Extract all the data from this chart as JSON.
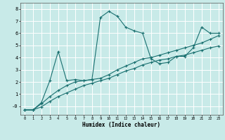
{
  "xlabel": "Humidex (Indice chaleur)",
  "bg_color": "#c8eae8",
  "grid_color": "#ffffff",
  "line_color": "#1a7070",
  "xlim": [
    -0.5,
    23.5
  ],
  "ylim": [
    -0.7,
    8.5
  ],
  "xticks": [
    0,
    1,
    2,
    3,
    4,
    5,
    6,
    7,
    8,
    9,
    10,
    11,
    12,
    13,
    14,
    15,
    16,
    17,
    18,
    19,
    20,
    21,
    22,
    23
  ],
  "yticks": [
    0,
    1,
    2,
    3,
    4,
    5,
    6,
    7,
    8
  ],
  "ytick_labels": [
    "-0",
    "1",
    "2",
    "3",
    "4",
    "5",
    "6",
    "7",
    "8"
  ],
  "series1_x": [
    0,
    1,
    2,
    3,
    4,
    5,
    6,
    7,
    8,
    9,
    10,
    11,
    12,
    13,
    14,
    15,
    16,
    17,
    18,
    19,
    20,
    21,
    22,
    23
  ],
  "series1_y": [
    -0.3,
    -0.3,
    0.3,
    2.1,
    4.5,
    2.1,
    2.2,
    2.1,
    2.2,
    7.3,
    7.8,
    7.4,
    6.5,
    6.2,
    6.0,
    3.9,
    3.5,
    3.6,
    4.1,
    4.1,
    4.8,
    6.5,
    6.0,
    6.0
  ],
  "series2_x": [
    0,
    1,
    2,
    3,
    4,
    5,
    6,
    7,
    8,
    9,
    10,
    11,
    12,
    13,
    14,
    15,
    16,
    17,
    18,
    19,
    20,
    21,
    22,
    23
  ],
  "series2_y": [
    -0.3,
    -0.3,
    0.2,
    0.8,
    1.3,
    1.7,
    2.0,
    2.1,
    2.2,
    2.3,
    2.6,
    3.0,
    3.3,
    3.6,
    3.9,
    4.0,
    4.2,
    4.4,
    4.6,
    4.8,
    5.0,
    5.2,
    5.5,
    5.8
  ],
  "series3_x": [
    0,
    1,
    2,
    3,
    4,
    5,
    6,
    7,
    8,
    9,
    10,
    11,
    12,
    13,
    14,
    15,
    16,
    17,
    18,
    19,
    20,
    21,
    22,
    23
  ],
  "series3_y": [
    -0.3,
    -0.3,
    -0.05,
    0.4,
    0.8,
    1.1,
    1.4,
    1.7,
    1.9,
    2.1,
    2.3,
    2.6,
    2.9,
    3.1,
    3.4,
    3.6,
    3.8,
    3.9,
    4.1,
    4.2,
    4.4,
    4.6,
    4.8,
    4.95
  ]
}
